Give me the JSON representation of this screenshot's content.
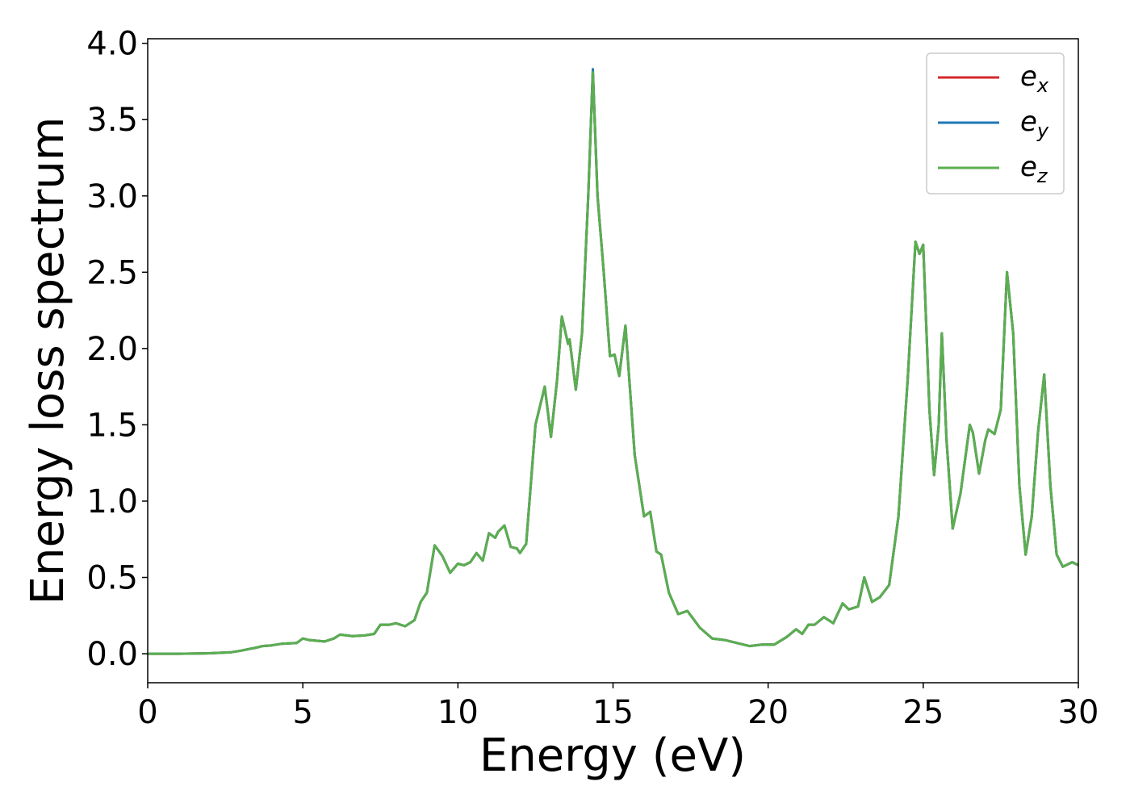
{
  "chart_data": {
    "type": "line",
    "xlabel": "Energy (eV)",
    "ylabel": "Energy loss spectrum",
    "x": [
      0,
      1,
      2,
      2.7,
      3,
      3.5,
      3.7,
      4,
      4.3,
      4.8,
      5,
      5.2,
      5.7,
      6,
      6.2,
      6.6,
      7,
      7.3,
      7.5,
      7.8,
      8,
      8.3,
      8.6,
      8.8,
      9,
      9.25,
      9.5,
      9.75,
      10,
      10.2,
      10.4,
      10.6,
      10.8,
      11,
      11.2,
      11.3,
      11.5,
      11.7,
      11.9,
      12,
      12.2,
      12.5,
      12.8,
      13,
      13.2,
      13.35,
      13.55,
      13.6,
      13.8,
      14,
      14.2,
      14.35,
      14.5,
      14.7,
      14.9,
      15.05,
      15.2,
      15.4,
      15.7,
      16,
      16.2,
      16.4,
      16.55,
      16.8,
      17.1,
      17.4,
      17.8,
      18.2,
      18.6,
      19,
      19.4,
      19.8,
      20.2,
      20.6,
      20.9,
      21.1,
      21.3,
      21.5,
      21.8,
      22.1,
      22.4,
      22.6,
      22.9,
      23.1,
      23.35,
      23.6,
      23.9,
      24.2,
      24.5,
      24.75,
      24.88,
      25,
      25.2,
      25.35,
      25.5,
      25.6,
      25.75,
      25.95,
      26.2,
      26.5,
      26.6,
      26.8,
      27,
      27.1,
      27.3,
      27.5,
      27.7,
      27.9,
      28.1,
      28.3,
      28.5,
      28.7,
      28.9,
      29.1,
      29.3,
      29.5,
      29.8,
      30
    ],
    "series": [
      {
        "name": "e_x",
        "color": "#d62728",
        "values": [
          0,
          0,
          0.003,
          0.01,
          0.02,
          0.04,
          0.05,
          0.055,
          0.065,
          0.07,
          0.1,
          0.09,
          0.08,
          0.1,
          0.125,
          0.115,
          0.12,
          0.13,
          0.19,
          0.19,
          0.2,
          0.18,
          0.22,
          0.34,
          0.4,
          0.71,
          0.64,
          0.53,
          0.59,
          0.58,
          0.6,
          0.66,
          0.61,
          0.79,
          0.76,
          0.8,
          0.84,
          0.7,
          0.69,
          0.66,
          0.72,
          1.5,
          1.75,
          1.42,
          1.8,
          2.21,
          2.03,
          2.06,
          1.73,
          2.1,
          3.0,
          3.82,
          3.0,
          2.5,
          1.95,
          1.96,
          1.82,
          2.15,
          1.3,
          0.9,
          0.93,
          0.67,
          0.65,
          0.4,
          0.26,
          0.28,
          0.17,
          0.1,
          0.09,
          0.07,
          0.05,
          0.06,
          0.06,
          0.11,
          0.16,
          0.13,
          0.19,
          0.19,
          0.24,
          0.2,
          0.33,
          0.29,
          0.31,
          0.5,
          0.34,
          0.37,
          0.45,
          0.9,
          1.8,
          2.7,
          2.62,
          2.68,
          1.6,
          1.17,
          1.5,
          2.1,
          1.4,
          0.82,
          1.05,
          1.5,
          1.45,
          1.18,
          1.4,
          1.47,
          1.44,
          1.6,
          2.5,
          2.1,
          1.1,
          0.65,
          0.9,
          1.45,
          1.83,
          1.1,
          0.65,
          0.57,
          0.6,
          0.58
        ]
      },
      {
        "name": "e_y",
        "color": "#1f77b4",
        "values": [
          0,
          0,
          0.003,
          0.01,
          0.02,
          0.04,
          0.05,
          0.055,
          0.065,
          0.07,
          0.1,
          0.09,
          0.08,
          0.1,
          0.125,
          0.115,
          0.12,
          0.13,
          0.19,
          0.19,
          0.2,
          0.18,
          0.22,
          0.34,
          0.4,
          0.71,
          0.64,
          0.53,
          0.59,
          0.58,
          0.6,
          0.66,
          0.61,
          0.79,
          0.76,
          0.8,
          0.84,
          0.7,
          0.69,
          0.66,
          0.72,
          1.5,
          1.75,
          1.42,
          1.8,
          2.21,
          2.03,
          2.06,
          1.73,
          2.1,
          3.0,
          3.83,
          3.0,
          2.5,
          1.95,
          1.96,
          1.82,
          2.15,
          1.3,
          0.9,
          0.93,
          0.67,
          0.65,
          0.4,
          0.26,
          0.28,
          0.17,
          0.1,
          0.09,
          0.07,
          0.05,
          0.06,
          0.06,
          0.11,
          0.16,
          0.13,
          0.19,
          0.19,
          0.24,
          0.2,
          0.33,
          0.29,
          0.31,
          0.5,
          0.34,
          0.37,
          0.45,
          0.9,
          1.8,
          2.7,
          2.62,
          2.68,
          1.6,
          1.17,
          1.5,
          2.1,
          1.4,
          0.82,
          1.05,
          1.5,
          1.45,
          1.18,
          1.4,
          1.47,
          1.44,
          1.6,
          2.5,
          2.1,
          1.1,
          0.65,
          0.9,
          1.45,
          1.83,
          1.1,
          0.65,
          0.57,
          0.6,
          0.58
        ]
      },
      {
        "name": "e_z",
        "color": "#5aae4f",
        "values": [
          0,
          0,
          0.003,
          0.01,
          0.02,
          0.04,
          0.05,
          0.055,
          0.065,
          0.07,
          0.1,
          0.09,
          0.08,
          0.1,
          0.125,
          0.115,
          0.12,
          0.13,
          0.19,
          0.19,
          0.2,
          0.18,
          0.22,
          0.34,
          0.4,
          0.71,
          0.64,
          0.53,
          0.59,
          0.58,
          0.6,
          0.66,
          0.61,
          0.79,
          0.76,
          0.8,
          0.84,
          0.7,
          0.69,
          0.66,
          0.72,
          1.5,
          1.75,
          1.42,
          1.8,
          2.21,
          2.03,
          2.06,
          1.73,
          2.1,
          3.0,
          3.81,
          3.0,
          2.5,
          1.95,
          1.96,
          1.82,
          2.15,
          1.3,
          0.9,
          0.93,
          0.67,
          0.65,
          0.4,
          0.26,
          0.28,
          0.17,
          0.1,
          0.09,
          0.07,
          0.05,
          0.06,
          0.06,
          0.11,
          0.16,
          0.13,
          0.19,
          0.19,
          0.24,
          0.2,
          0.33,
          0.29,
          0.31,
          0.5,
          0.34,
          0.37,
          0.45,
          0.9,
          1.8,
          2.7,
          2.62,
          2.68,
          1.6,
          1.17,
          1.5,
          2.1,
          1.4,
          0.82,
          1.05,
          1.5,
          1.45,
          1.18,
          1.4,
          1.47,
          1.44,
          1.6,
          2.5,
          2.1,
          1.1,
          0.65,
          0.9,
          1.45,
          1.83,
          1.1,
          0.65,
          0.57,
          0.6,
          0.58
        ]
      }
    ],
    "xlim": [
      0,
      30
    ],
    "xticks": [
      0,
      5,
      10,
      15,
      20,
      25,
      30
    ],
    "ylim": [
      -0.19,
      4.03
    ],
    "yticks": [
      {
        "value": 0,
        "label": "0.0"
      },
      0.5,
      {
        "value": 1,
        "label": "1.0"
      },
      1.5,
      {
        "value": 2,
        "label": "2.0"
      },
      2.5,
      {
        "value": 3,
        "label": "3.0"
      },
      3.5,
      {
        "value": 4,
        "label": "4.0"
      }
    ],
    "legend": "upper right",
    "grid": false
  }
}
